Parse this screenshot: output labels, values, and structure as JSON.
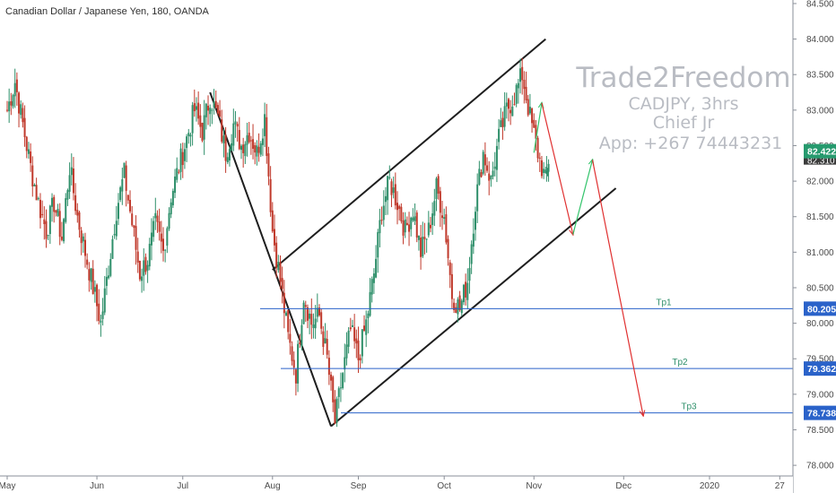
{
  "header": {
    "title": "Canadian Dollar / Japanese Yen, 180, OANDA"
  },
  "watermark": {
    "line1": "Trade2Freedom",
    "line2": "CADJPY, 3hrs",
    "line3": "Chief Jr",
    "line4": "App: +267 74443231"
  },
  "colors": {
    "up": "#2e8f6a",
    "down": "#c0392b",
    "level_line": "#2a62c9",
    "badge_blue": "#2a62c9",
    "badge_green": "#269a6e",
    "trend_line": "#1e1e1e",
    "path_red": "#e03030",
    "path_green": "#33c46b"
  },
  "chart_data": {
    "type": "candlestick",
    "symbol": "CADJPY",
    "y_axis": {
      "ticks": [
        "84.500",
        "84.000",
        "83.500",
        "83.000",
        "82.500",
        "82.000",
        "81.500",
        "81.000",
        "80.500",
        "80.000",
        "79.500",
        "79.000",
        "78.500",
        "78.000"
      ],
      "range": [
        77.85,
        84.55
      ]
    },
    "x_axis": {
      "ticks": [
        "May",
        "Jun",
        "Jul",
        "Aug",
        "Sep",
        "Oct",
        "Nov",
        "Dec",
        "2020",
        "27"
      ],
      "tick_index": [
        0,
        23,
        45,
        68,
        90,
        112,
        135,
        158,
        180,
        198
      ],
      "total_index": 200
    },
    "price_path": [
      [
        0,
        83.0
      ],
      [
        2,
        83.4
      ],
      [
        4,
        82.8
      ],
      [
        6,
        82.2
      ],
      [
        8,
        81.7
      ],
      [
        10,
        81.3
      ],
      [
        12,
        81.7
      ],
      [
        14,
        81.2
      ],
      [
        16,
        82.2
      ],
      [
        18,
        81.5
      ],
      [
        20,
        81.0
      ],
      [
        22,
        80.5
      ],
      [
        24,
        80.0
      ],
      [
        26,
        80.8
      ],
      [
        28,
        81.6
      ],
      [
        30,
        82.1
      ],
      [
        32,
        81.4
      ],
      [
        34,
        80.7
      ],
      [
        36,
        80.9
      ],
      [
        38,
        81.4
      ],
      [
        40,
        81.0
      ],
      [
        42,
        81.8
      ],
      [
        44,
        82.2
      ],
      [
        46,
        82.6
      ],
      [
        48,
        83.0
      ],
      [
        50,
        82.7
      ],
      [
        52,
        83.2
      ],
      [
        54,
        82.9
      ],
      [
        56,
        82.4
      ],
      [
        58,
        82.8
      ],
      [
        60,
        82.5
      ],
      [
        62,
        82.7
      ],
      [
        64,
        82.4
      ],
      [
        66,
        82.9
      ],
      [
        68,
        81.3
      ],
      [
        70,
        80.6
      ],
      [
        72,
        79.8
      ],
      [
        74,
        79.3
      ],
      [
        76,
        80.4
      ],
      [
        78,
        80.0
      ],
      [
        80,
        80.1
      ],
      [
        82,
        79.5
      ],
      [
        84,
        78.6
      ],
      [
        86,
        79.3
      ],
      [
        88,
        79.9
      ],
      [
        90,
        79.5
      ],
      [
        92,
        80.0
      ],
      [
        94,
        80.7
      ],
      [
        96,
        81.6
      ],
      [
        98,
        82.0
      ],
      [
        100,
        81.7
      ],
      [
        102,
        81.3
      ],
      [
        104,
        81.6
      ],
      [
        106,
        81.0
      ],
      [
        108,
        81.3
      ],
      [
        110,
        81.9
      ],
      [
        112,
        81.5
      ],
      [
        114,
        80.4
      ],
      [
        116,
        80.2
      ],
      [
        118,
        80.6
      ],
      [
        120,
        81.7
      ],
      [
        122,
        82.4
      ],
      [
        124,
        82.0
      ],
      [
        126,
        82.6
      ],
      [
        128,
        83.0
      ],
      [
        130,
        83.2
      ],
      [
        132,
        83.5
      ],
      [
        134,
        82.9
      ],
      [
        136,
        82.4
      ],
      [
        138,
        82.0
      ],
      [
        139,
        82.4
      ]
    ],
    "levels": [
      {
        "label": "Tp1",
        "value": "80.205",
        "price": 80.205
      },
      {
        "label": "Tp2",
        "value": "79.362",
        "price": 79.362
      },
      {
        "label": "Tp3",
        "value": "78.738",
        "price": 78.738
      }
    ],
    "current_price": {
      "value": "82.422",
      "price": 82.422
    },
    "badge_partial": "82.310",
    "trend_lines": [
      {
        "name": "channel-upper",
        "from": [
          68,
          80.75
        ],
        "to": [
          138,
          84.0
        ]
      },
      {
        "name": "channel-lower",
        "from": [
          83,
          78.55
        ],
        "to": [
          156,
          81.9
        ]
      },
      {
        "name": "downtrend",
        "from": [
          52,
          83.25
        ],
        "to": [
          83,
          78.55
        ]
      }
    ],
    "projection": [
      {
        "color": "green",
        "from": [
          135,
          82.4
        ],
        "to": [
          137,
          83.1
        ]
      },
      {
        "color": "red",
        "from": [
          137,
          83.1
        ],
        "to": [
          145,
          81.25
        ]
      },
      {
        "color": "green",
        "from": [
          145,
          81.25
        ],
        "to": [
          150,
          82.3
        ]
      },
      {
        "color": "red",
        "from": [
          150,
          82.3
        ],
        "to": [
          163,
          78.7
        ]
      }
    ]
  }
}
